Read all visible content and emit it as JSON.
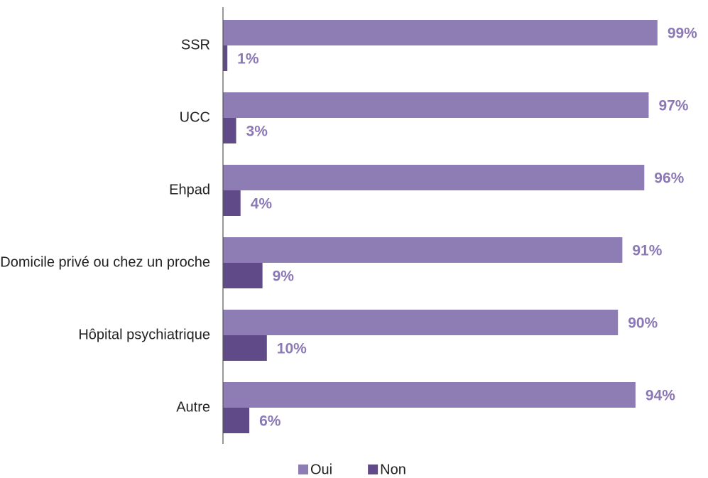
{
  "chart_data": {
    "type": "bar",
    "orientation": "horizontal",
    "categories": [
      "SSR",
      "UCC",
      "Ehpad",
      "Domicile privé ou chez un proche",
      "Hôpital psychiatrique",
      "Autre"
    ],
    "series": [
      {
        "name": "Oui",
        "color": "#8e7cb4",
        "values": [
          99,
          97,
          96,
          91,
          90,
          94
        ],
        "value_labels": [
          "99%",
          "97%",
          "96%",
          "91%",
          "90%",
          "94%"
        ]
      },
      {
        "name": "Non",
        "color": "#604a87",
        "values": [
          1,
          3,
          4,
          9,
          10,
          6
        ],
        "value_labels": [
          "1%",
          "3%",
          "4%",
          "9%",
          "10%",
          "6%"
        ]
      }
    ],
    "xlim": [
      0,
      100
    ],
    "label_color": "#8b78b5",
    "legend": "bottom"
  }
}
